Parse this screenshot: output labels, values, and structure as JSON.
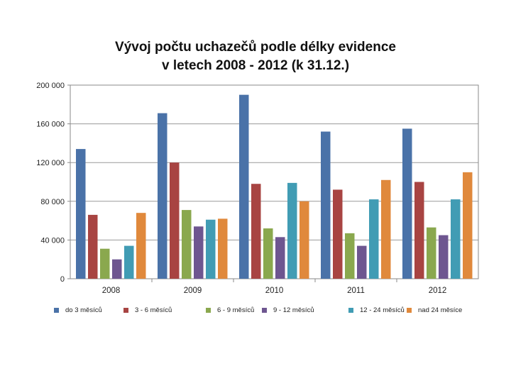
{
  "chart_data": {
    "type": "bar",
    "title_line1": "Vývoj počtu uchazečů podle délky evidence",
    "title_line2": "v letech 2008 - 2012 (k 31.12.)",
    "categories": [
      "2008",
      "2009",
      "2010",
      "2011",
      "2012"
    ],
    "ylim": [
      0,
      200000
    ],
    "yticks": [
      0,
      40000,
      80000,
      120000,
      160000,
      200000
    ],
    "ytick_labels": [
      "0",
      "40 000",
      "80 000",
      "120 000",
      "160 000",
      "200 000"
    ],
    "grid": true,
    "legend_position": "bottom",
    "series": [
      {
        "name": "do 3 měsíců",
        "color": "#4a72a8",
        "values": [
          134000,
          171000,
          190000,
          152000,
          155000
        ]
      },
      {
        "name": "3 - 6 měsíců",
        "color": "#a84442",
        "values": [
          66000,
          120000,
          98000,
          92000,
          100000
        ]
      },
      {
        "name": "6 - 9 měsíců",
        "color": "#8aa84e",
        "values": [
          31000,
          71000,
          52000,
          47000,
          53000
        ]
      },
      {
        "name": "9 - 12 měsíců",
        "color": "#6e5690",
        "values": [
          20000,
          54000,
          43000,
          34000,
          45000
        ]
      },
      {
        "name": "12 - 24 měsíců",
        "color": "#419cb4",
        "values": [
          34000,
          61000,
          99000,
          82000,
          82000
        ]
      },
      {
        "name": "nad 24 měsíce",
        "color": "#e0893c",
        "values": [
          68000,
          62000,
          80000,
          102000,
          110000
        ]
      }
    ]
  }
}
